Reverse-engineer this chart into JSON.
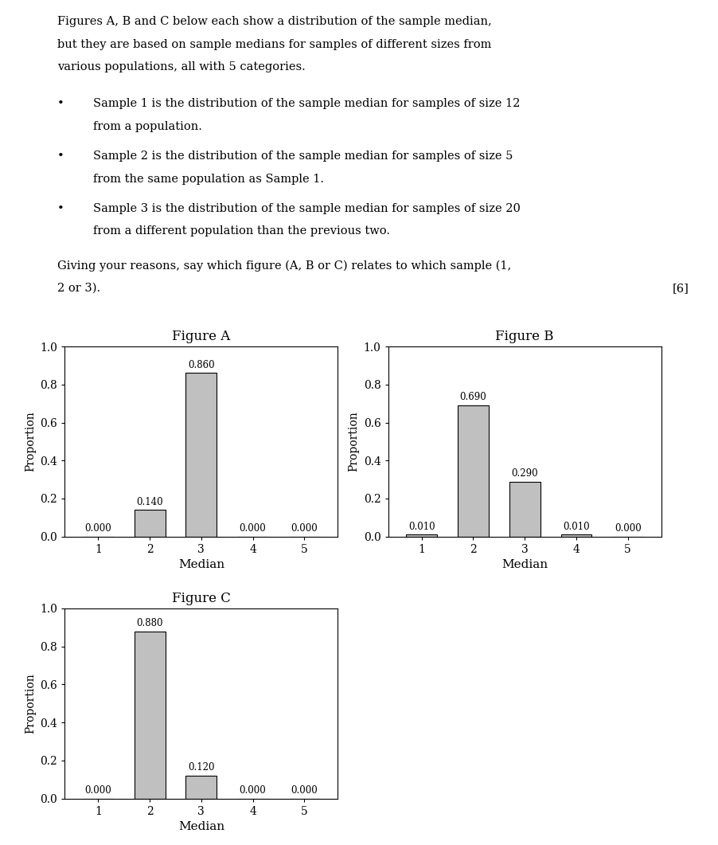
{
  "text_line1": "Figures A, B and C below each show a distribution of the sample median,",
  "text_line2": "but they are based on sample medians for samples of different sizes from",
  "text_line3": "various populations, all with 5 categories.",
  "bullet1_text": "Sample 1 is the distribution of the sample median for samples of size 12",
  "bullet1_cont": "from a population.",
  "bullet2_text": "Sample 2 is the distribution of the sample median for samples of size 5",
  "bullet2_cont": "from the same population as Sample 1.",
  "bullet3_text": "Sample 3 is the distribution of the sample median for samples of size 20",
  "bullet3_cont": "from a different population than the previous two.",
  "question_line1": "Giving your reasons, say which figure (A, B or C) relates to which sample (1,",
  "question_line2": "2 or 3).",
  "question_mark": "[6]",
  "figures": [
    {
      "title": "Figure A",
      "values": [
        0.0,
        0.14,
        0.86,
        0.0,
        0.0
      ],
      "categories": [
        1,
        2,
        3,
        4,
        5
      ],
      "xlabel": "Median",
      "ylabel": "Proportion",
      "ylim": [
        0.0,
        1.0
      ],
      "yticks": [
        0.0,
        0.2,
        0.4,
        0.6,
        0.8,
        1.0
      ]
    },
    {
      "title": "Figure B",
      "values": [
        0.01,
        0.69,
        0.29,
        0.01,
        0.0
      ],
      "categories": [
        1,
        2,
        3,
        4,
        5
      ],
      "xlabel": "Median",
      "ylabel": "Proportion",
      "ylim": [
        0.0,
        1.0
      ],
      "yticks": [
        0.0,
        0.2,
        0.4,
        0.6,
        0.8,
        1.0
      ]
    },
    {
      "title": "Figure C",
      "values": [
        0.0,
        0.88,
        0.12,
        0.0,
        0.0
      ],
      "categories": [
        1,
        2,
        3,
        4,
        5
      ],
      "xlabel": "Median",
      "ylabel": "Proportion",
      "ylim": [
        0.0,
        1.0
      ],
      "yticks": [
        0.0,
        0.2,
        0.4,
        0.6,
        0.8,
        1.0
      ]
    }
  ],
  "bar_color": "#c0c0c0",
  "bar_edgecolor": "#000000",
  "background_color": "#ffffff",
  "font_family": "serif",
  "fontsize_text": 10.5,
  "fontsize_tick": 10,
  "fontsize_label": 11,
  "fontsize_title": 12,
  "fontsize_annot": 8.5
}
